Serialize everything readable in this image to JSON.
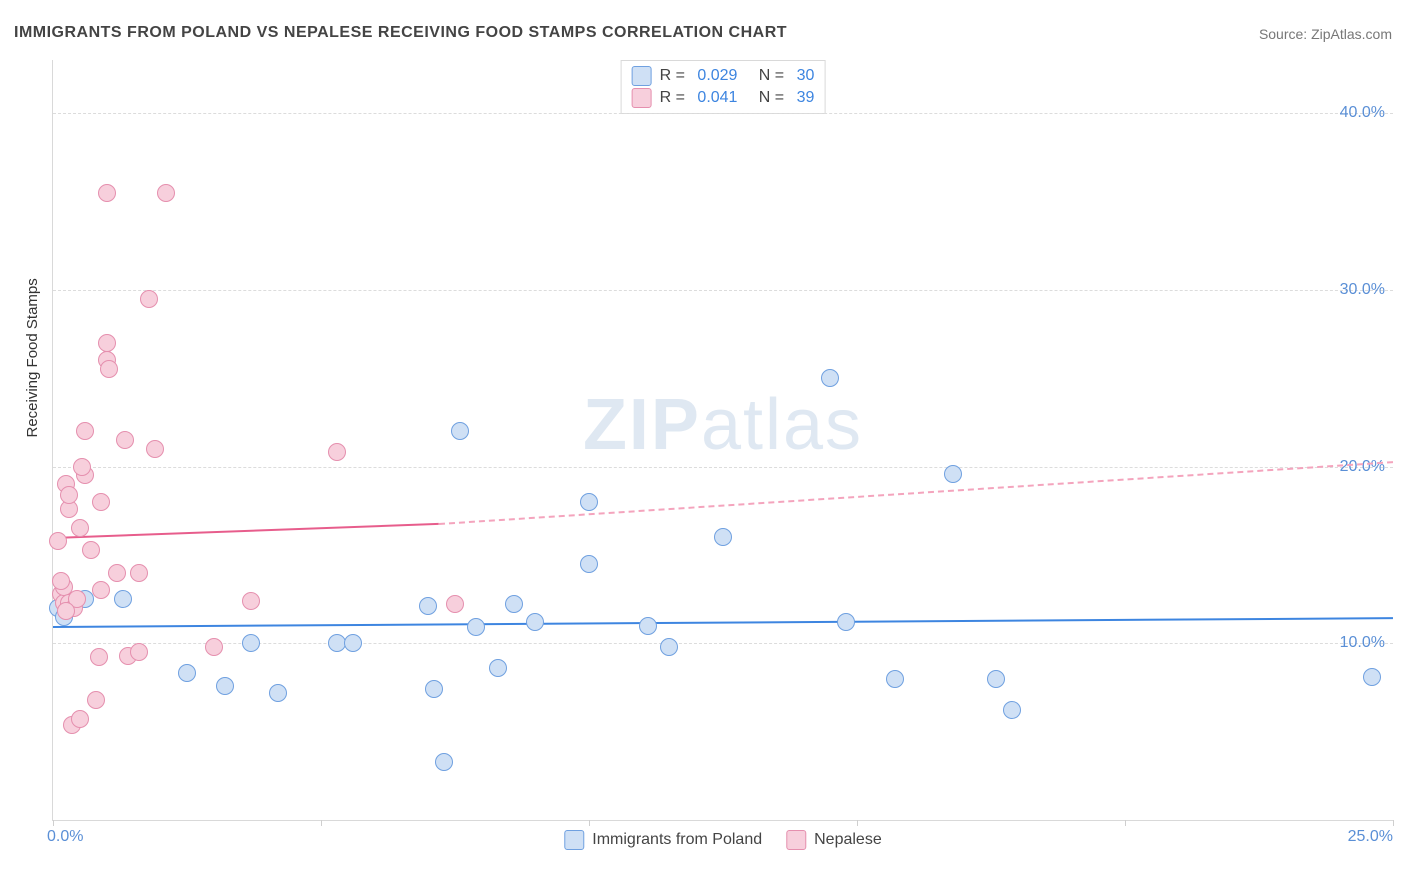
{
  "title": "IMMIGRANTS FROM POLAND VS NEPALESE RECEIVING FOOD STAMPS CORRELATION CHART",
  "source": "Source: ZipAtlas.com",
  "ylabel": "Receiving Food Stamps",
  "watermark_bold": "ZIP",
  "watermark_thin": "atlas",
  "chart": {
    "type": "scatter",
    "xlim": [
      0,
      25
    ],
    "ylim": [
      0,
      43
    ],
    "y_gridlines": [
      10,
      20,
      30,
      40
    ],
    "y_tick_labels": [
      "10.0%",
      "20.0%",
      "30.0%",
      "40.0%"
    ],
    "x_ticks": [
      0,
      5,
      10,
      15,
      20,
      25
    ],
    "x_tick_labels_shown": {
      "0": "0.0%",
      "25": "25.0%"
    },
    "background_color": "#ffffff",
    "grid_color": "#dcdcdc",
    "axis_color": "#d9d9d9",
    "tick_label_color": "#5a8fd6",
    "point_radius": 8,
    "series": [
      {
        "name": "Immigrants from Poland",
        "fill": "#cfe0f5",
        "stroke": "#6fa0e0",
        "trend_color": "#3d85e0",
        "R_label": "R = ",
        "R_value": "0.029",
        "N_label": "   N = ",
        "N_value": "30",
        "trend": {
          "x1": 0,
          "y1": 11.0,
          "x2": 25,
          "y2": 11.5,
          "solid_until_x": 25
        },
        "points": [
          [
            0.1,
            12.0
          ],
          [
            0.2,
            11.5
          ],
          [
            1.3,
            12.5
          ],
          [
            2.5,
            8.3
          ],
          [
            3.2,
            7.6
          ],
          [
            3.7,
            10.0
          ],
          [
            4.2,
            7.2
          ],
          [
            5.3,
            10.0
          ],
          [
            5.6,
            10.0
          ],
          [
            7.1,
            7.4
          ],
          [
            7.3,
            3.3
          ],
          [
            7.6,
            22.0
          ],
          [
            7.0,
            12.1
          ],
          [
            7.9,
            10.9
          ],
          [
            8.3,
            8.6
          ],
          [
            8.6,
            12.2
          ],
          [
            9.0,
            11.2
          ],
          [
            10.0,
            18.0
          ],
          [
            10.0,
            14.5
          ],
          [
            11.1,
            11.0
          ],
          [
            11.5,
            9.8
          ],
          [
            12.5,
            16.0
          ],
          [
            14.5,
            25.0
          ],
          [
            14.8,
            11.2
          ],
          [
            15.7,
            8.0
          ],
          [
            16.8,
            19.6
          ],
          [
            17.6,
            8.0
          ],
          [
            17.9,
            6.2
          ],
          [
            24.6,
            8.1
          ],
          [
            0.6,
            12.5
          ]
        ]
      },
      {
        "name": "Nepalese",
        "fill": "#f7cfdc",
        "stroke": "#e58fae",
        "trend_color": "#e75d8c",
        "R_label": "R = ",
        "R_value": "0.041",
        "N_label": "   N = ",
        "N_value": "39",
        "trend": {
          "x1": 0,
          "y1": 16.0,
          "x2": 7.2,
          "y2": 16.8,
          "dashed_to_x": 25,
          "dashed_to_y": 20.3
        },
        "points": [
          [
            0.1,
            15.8
          ],
          [
            0.15,
            12.8
          ],
          [
            0.2,
            12.3
          ],
          [
            0.2,
            13.2
          ],
          [
            0.25,
            19.0
          ],
          [
            0.3,
            12.3
          ],
          [
            0.3,
            17.6
          ],
          [
            0.3,
            18.4
          ],
          [
            0.35,
            5.4
          ],
          [
            0.4,
            12.0
          ],
          [
            0.45,
            12.5
          ],
          [
            0.5,
            5.7
          ],
          [
            0.6,
            19.5
          ],
          [
            0.6,
            22.0
          ],
          [
            0.7,
            15.3
          ],
          [
            0.8,
            6.8
          ],
          [
            0.85,
            9.2
          ],
          [
            0.9,
            13.0
          ],
          [
            1.0,
            35.5
          ],
          [
            1.0,
            26.0
          ],
          [
            1.0,
            27.0
          ],
          [
            1.2,
            14.0
          ],
          [
            1.35,
            21.5
          ],
          [
            1.4,
            9.3
          ],
          [
            1.6,
            14.0
          ],
          [
            1.6,
            9.5
          ],
          [
            1.8,
            29.5
          ],
          [
            1.9,
            21.0
          ],
          [
            2.1,
            35.5
          ],
          [
            3.0,
            9.8
          ],
          [
            3.7,
            12.4
          ],
          [
            5.3,
            20.8
          ],
          [
            7.5,
            12.2
          ],
          [
            0.15,
            13.5
          ],
          [
            0.25,
            11.8
          ],
          [
            0.5,
            16.5
          ],
          [
            0.55,
            20.0
          ],
          [
            0.9,
            18.0
          ],
          [
            1.05,
            25.5
          ]
        ]
      }
    ]
  },
  "bottom_legend": {
    "series1_label": "Immigrants from Poland",
    "series2_label": "Nepalese"
  }
}
